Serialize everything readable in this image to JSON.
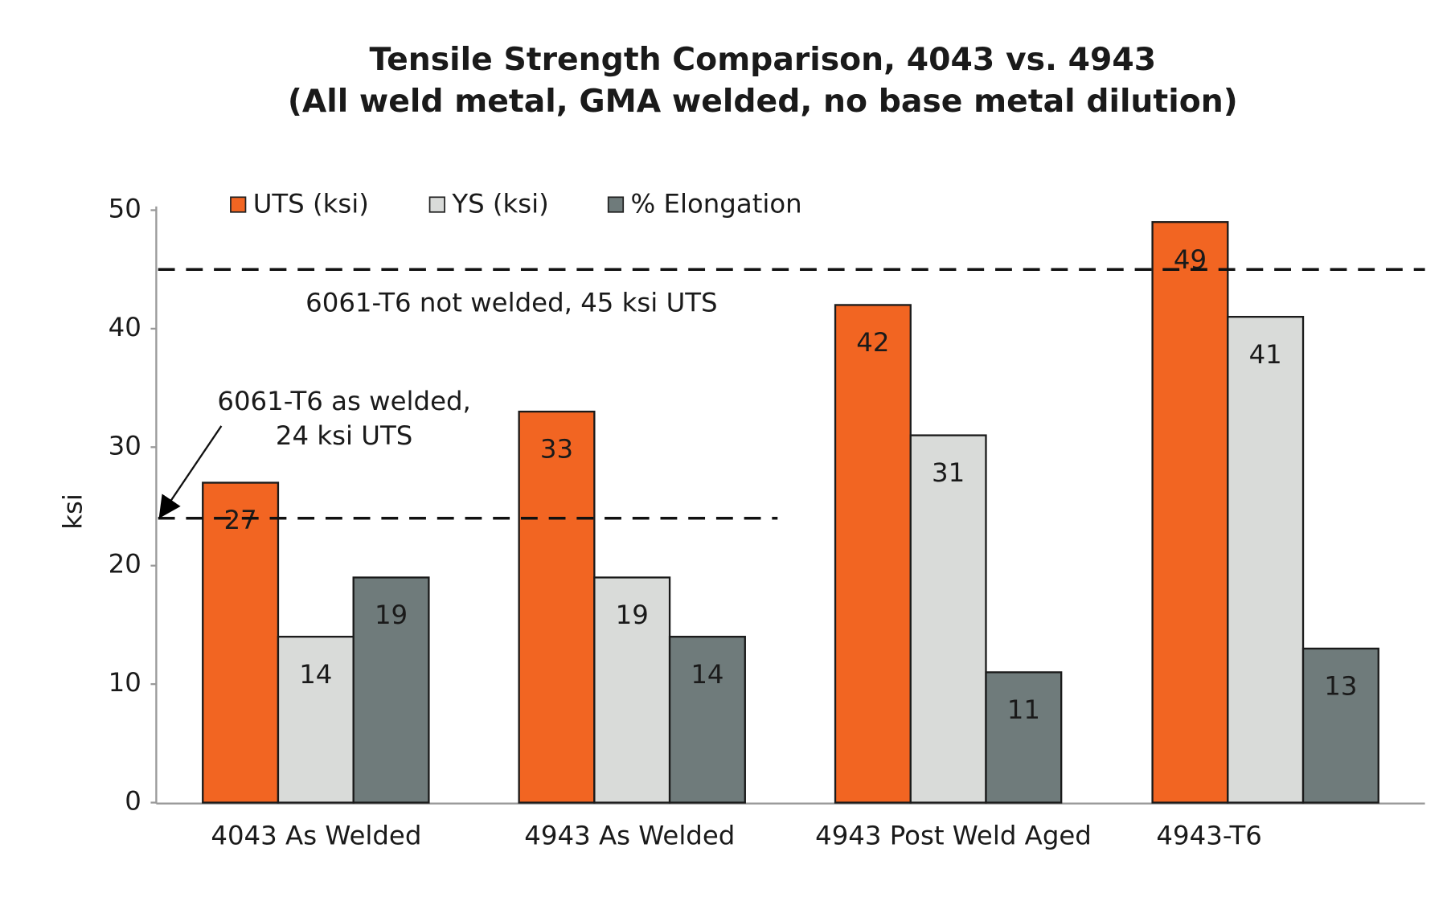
{
  "chart_data": {
    "type": "bar",
    "title": [
      "Tensile Strength Comparison, 4043 vs. 4943",
      "(All weld metal, GMA welded, no base metal dilution)"
    ],
    "y_label": "ksi",
    "categories": [
      "4043 As Welded",
      "4943 As Welded",
      "4943 Post Weld Aged",
      "4943-T6"
    ],
    "series": [
      {
        "name": "UTS (ksi)",
        "color": "#f26522",
        "values": [
          27,
          33,
          42,
          49
        ]
      },
      {
        "name": "YS (ksi)",
        "color": "#d9dbd9",
        "values": [
          14,
          19,
          31,
          41
        ]
      },
      {
        "name": "% Elongation",
        "color": "#6f7b7b",
        "values": [
          19,
          14,
          11,
          13
        ]
      }
    ],
    "ylim": [
      0,
      50
    ],
    "yticks": [
      0,
      10,
      20,
      30,
      40,
      50
    ],
    "grid": false,
    "reference_lines": [
      {
        "value": 45,
        "label": [
          "6061-T6 not welded, 45 ksi UTS"
        ]
      },
      {
        "value": 24,
        "label": [
          "6061-T6 as welded,",
          "24 ksi UTS"
        ]
      }
    ]
  }
}
